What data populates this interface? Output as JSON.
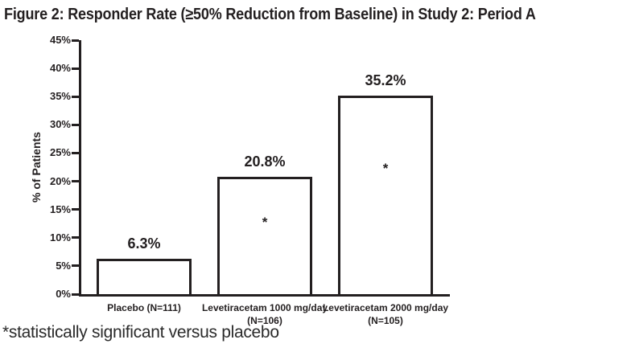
{
  "title": "Figure 2: Responder Rate (≥50% Reduction from Baseline) in Study 2: Period A",
  "footnote": "*statistically significant versus placebo",
  "chart_data": {
    "type": "bar",
    "title": "Figure 2: Responder Rate (≥50% Reduction from Baseline) in Study 2: Period A",
    "xlabel": "",
    "ylabel": "% of Patients",
    "ylim": [
      0,
      45
    ],
    "ytick_step": 5,
    "ytick_suffix": "%",
    "grid": false,
    "legend": "none",
    "bar_fill": "#ffffff",
    "bar_border": "#231f20",
    "categories": [
      "Placebo (N=111)",
      "Levetiracetam 1000 mg/day\n(N=106)",
      "Levetiracetam 2000 mg/day\n(N=105)"
    ],
    "values": [
      6.3,
      20.8,
      35.2
    ],
    "value_labels": [
      "6.3%",
      "20.8%",
      "35.2%"
    ],
    "significance_markers": [
      "",
      "*",
      "*"
    ],
    "annotation": "*statistically significant versus placebo"
  }
}
